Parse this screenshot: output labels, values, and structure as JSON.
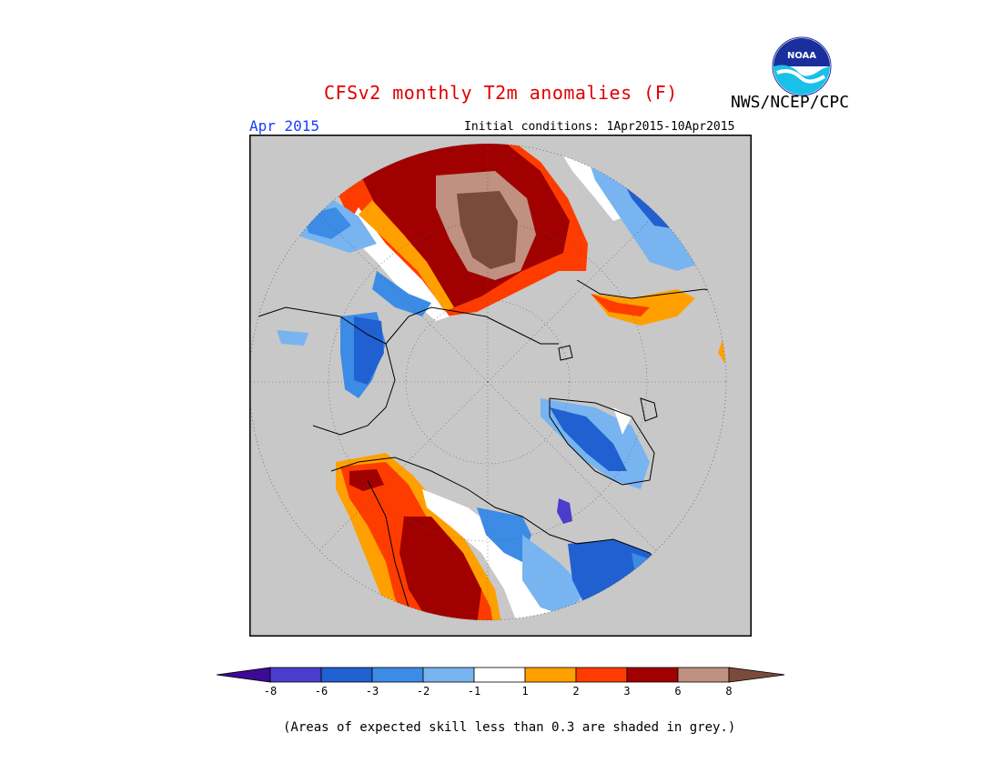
{
  "header": {
    "title": "CFSv2 monthly T2m anomalies (F)",
    "agency": "NWS/NCEP/CPC",
    "logo_text": "NOAA"
  },
  "subheader": {
    "month": "Apr 2015",
    "initial_conditions": "Initial conditions: 1Apr2015-10Apr2015"
  },
  "map": {
    "projection": "north-polar-stereographic",
    "background_color": "#c8c8c8",
    "land_outline_color": "#000000"
  },
  "colorbar": {
    "labels": [
      "-8",
      "-6",
      "-3",
      "-2",
      "-1",
      "1",
      "2",
      "3",
      "6",
      "8"
    ],
    "colors": {
      "lt_-8": "#3c0a96",
      "-8_-6": "#4b3ccc",
      "-6_-3": "#2060d0",
      "-3_-2": "#3c8ce6",
      "-2_-1": "#78b4f0",
      "-1_1": "#ffffff",
      "1_2": "#ffa000",
      "2_3": "#ff3c00",
      "3_6": "#a00000",
      "6_8": "#c09080",
      "gt_8": "#7a4a3a"
    }
  },
  "footnote": "(Areas of expected skill less than 0.3 are shaded in grey.)"
}
